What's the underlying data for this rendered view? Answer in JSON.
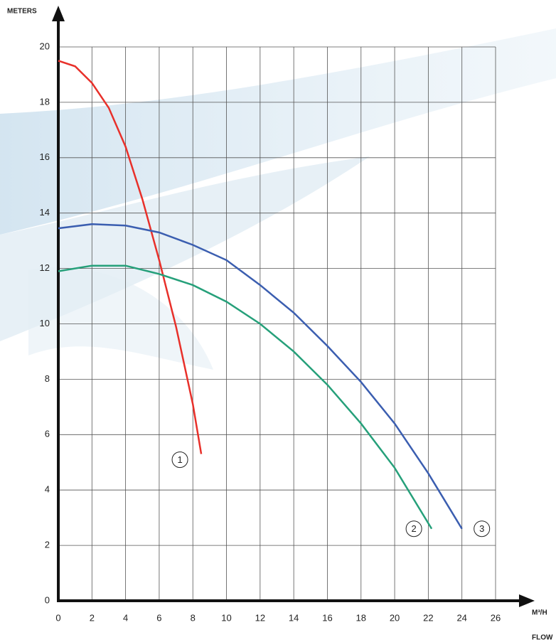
{
  "chart_data": {
    "type": "line",
    "y_label": "METERS",
    "x_unit": "M³/H",
    "x_label": "FLOW",
    "xlim": [
      0,
      26
    ],
    "xticks": [
      0,
      2,
      4,
      6,
      8,
      10,
      12,
      14,
      16,
      18,
      20,
      22,
      24,
      26
    ],
    "ylim": [
      0,
      20
    ],
    "yticks": [
      0,
      2,
      4,
      6,
      8,
      10,
      12,
      14,
      16,
      18,
      20
    ],
    "grid": true,
    "series": [
      {
        "name": "1",
        "color": "#e8302a",
        "x": [
          0,
          1,
          2,
          3,
          4,
          5,
          6,
          7,
          8,
          8.5
        ],
        "values": [
          19.5,
          19.3,
          18.7,
          17.8,
          16.4,
          14.5,
          12.3,
          9.9,
          7.1,
          5.3
        ]
      },
      {
        "name": "2",
        "color": "#26a07a",
        "x": [
          0,
          2,
          4,
          6,
          8,
          10,
          12,
          14,
          16,
          18,
          20,
          22.2
        ],
        "values": [
          11.9,
          12.1,
          12.1,
          11.8,
          11.4,
          10.8,
          10.0,
          9.0,
          7.8,
          6.4,
          4.8,
          2.6
        ]
      },
      {
        "name": "3",
        "color": "#3b5eb0",
        "x": [
          0,
          2,
          4,
          6,
          8,
          10,
          12,
          14,
          16,
          18,
          20,
          22,
          24
        ],
        "values": [
          13.45,
          13.6,
          13.55,
          13.3,
          12.85,
          12.3,
          11.4,
          10.4,
          9.2,
          7.9,
          6.4,
          4.6,
          2.6
        ]
      }
    ]
  }
}
